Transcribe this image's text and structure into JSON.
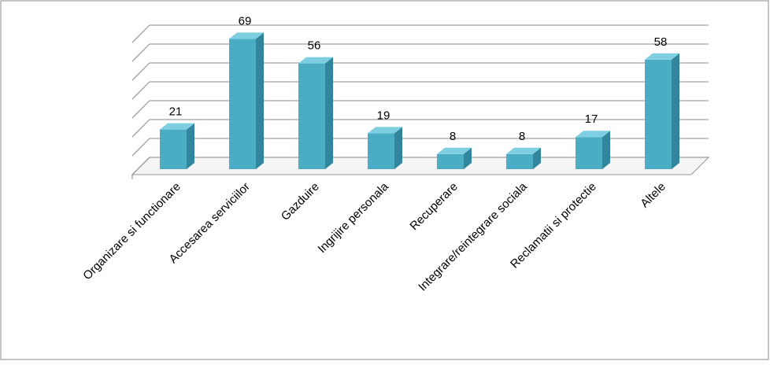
{
  "chart_data": {
    "type": "bar",
    "categories": [
      "Organizare si functionare",
      "Accesarea serviciilor",
      "Gazduire",
      "Ingrijire personala",
      "Recuperare",
      "Integrare/reintegrare sociala",
      "Reclamatii si protectie",
      "Altele"
    ],
    "values": [
      21,
      69,
      56,
      19,
      8,
      8,
      17,
      58
    ],
    "color": "#4bacc6",
    "ylim": [
      0,
      70
    ],
    "yticks": [
      0,
      10,
      20,
      30,
      40,
      50,
      60,
      70
    ],
    "grid": true
  }
}
